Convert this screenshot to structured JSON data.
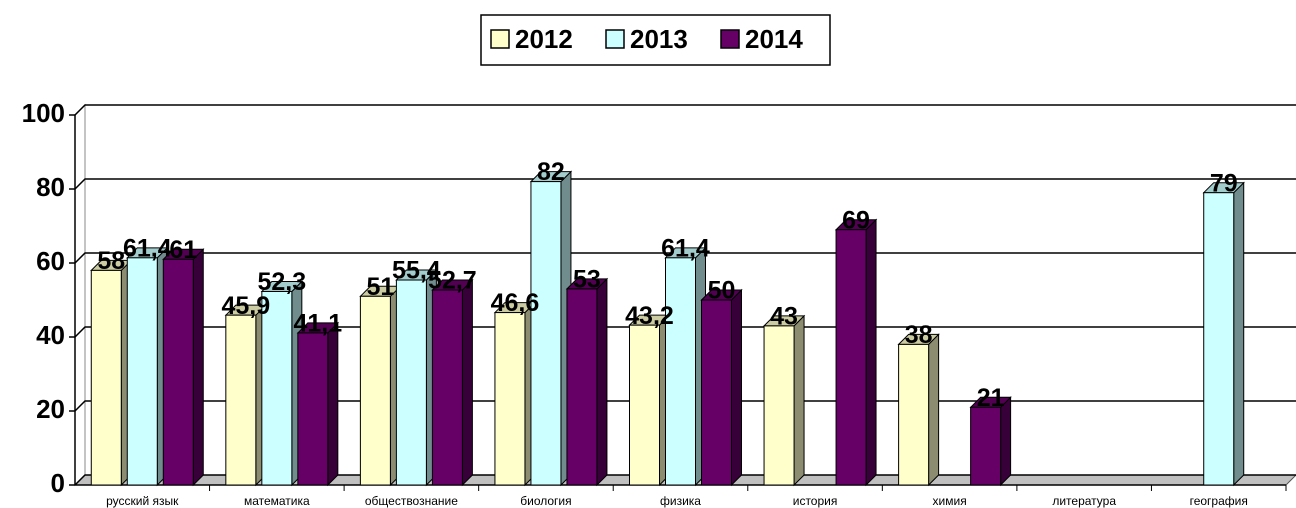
{
  "chart_data": {
    "type": "bar3d",
    "categories": [
      "русский язык",
      "математика",
      "обществознание",
      "биология",
      "физика",
      "история",
      "химия",
      "литература",
      "география"
    ],
    "series": [
      {
        "name": "2012",
        "color": "#ffffcc",
        "values": [
          58,
          45.9,
          51,
          46.6,
          43.2,
          43,
          38,
          null,
          null
        ],
        "value_labels": [
          "58",
          "45,9",
          "51",
          "46,6",
          "43,2",
          "43",
          "38",
          null,
          null
        ]
      },
      {
        "name": "2013",
        "color": "#ccffff",
        "values": [
          61.4,
          52.3,
          55.4,
          82,
          61.4,
          null,
          null,
          null,
          79
        ],
        "value_labels": [
          "61,4",
          "52,3",
          "55,4",
          "82",
          "61,4",
          null,
          null,
          null,
          "79"
        ]
      },
      {
        "name": "2014",
        "color": "#660066",
        "values": [
          61,
          41.1,
          52.7,
          53,
          50,
          69,
          21,
          null,
          null
        ],
        "value_labels": [
          "61",
          "41,1",
          "52,7",
          "53",
          "50",
          "69",
          "21",
          null,
          null
        ]
      }
    ],
    "ylim": [
      0,
      100
    ],
    "yticks": [
      0,
      20,
      40,
      60,
      80,
      100
    ],
    "grid": true,
    "legend": "top"
  }
}
